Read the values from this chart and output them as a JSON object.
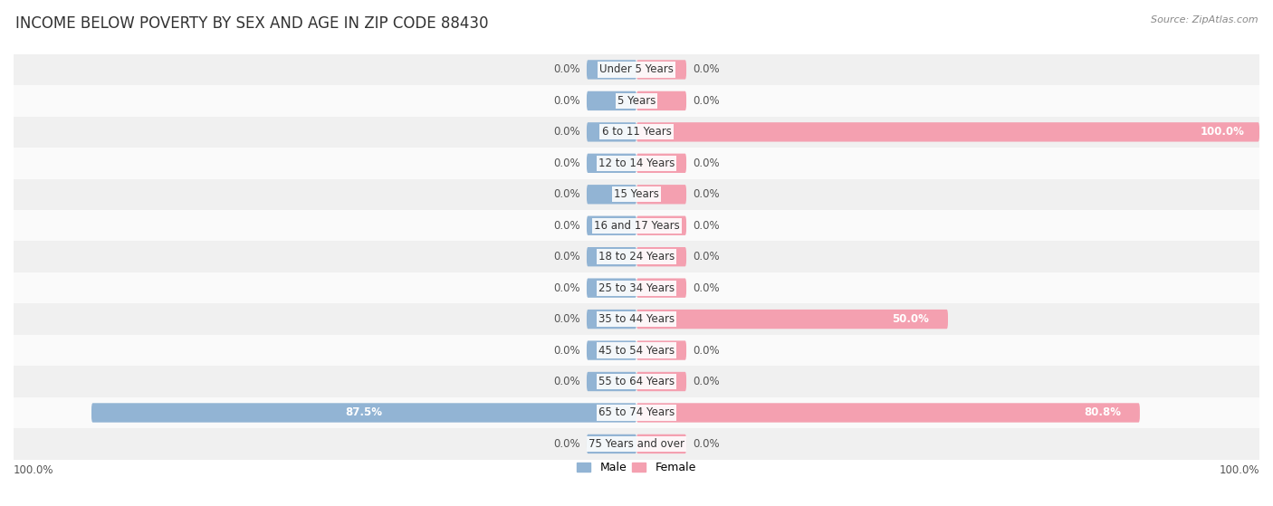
{
  "title": "INCOME BELOW POVERTY BY SEX AND AGE IN ZIP CODE 88430",
  "source": "Source: ZipAtlas.com",
  "categories": [
    "Under 5 Years",
    "5 Years",
    "6 to 11 Years",
    "12 to 14 Years",
    "15 Years",
    "16 and 17 Years",
    "18 to 24 Years",
    "25 to 34 Years",
    "35 to 44 Years",
    "45 to 54 Years",
    "55 to 64 Years",
    "65 to 74 Years",
    "75 Years and over"
  ],
  "male_values": [
    0.0,
    0.0,
    0.0,
    0.0,
    0.0,
    0.0,
    0.0,
    0.0,
    0.0,
    0.0,
    0.0,
    87.5,
    0.0
  ],
  "female_values": [
    0.0,
    0.0,
    100.0,
    0.0,
    0.0,
    0.0,
    0.0,
    0.0,
    50.0,
    0.0,
    0.0,
    80.8,
    0.0
  ],
  "male_color": "#92b4d4",
  "female_color": "#f4a0b0",
  "male_label": "Male",
  "female_label": "Female",
  "row_bg_colors": [
    "#f0f0f0",
    "#fafafa"
  ],
  "max_value": 100.0,
  "stub_size": 8.0,
  "label_fontsize": 8.5,
  "title_fontsize": 12,
  "source_fontsize": 8,
  "axis_label_fontsize": 8.5
}
